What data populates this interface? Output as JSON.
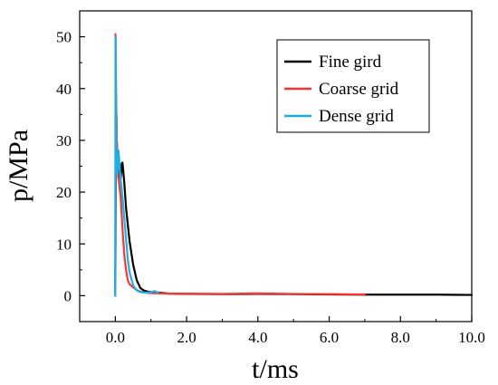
{
  "chart_data": {
    "type": "line",
    "title": "",
    "xlabel": "t/ms",
    "ylabel": "p/MPa",
    "xlim": [
      -1,
      10
    ],
    "ylim": [
      -5,
      55
    ],
    "x_ticks": [
      0,
      2,
      4,
      6,
      8,
      10
    ],
    "x_tick_labels": [
      "0.0",
      "2.0",
      "4.0",
      "6.0",
      "8.0",
      "10.0"
    ],
    "y_ticks": [
      0,
      10,
      20,
      30,
      40,
      50
    ],
    "y_tick_labels": [
      "0",
      "10",
      "20",
      "30",
      "40",
      "50"
    ],
    "grid": false,
    "legend": "top-right",
    "series": [
      {
        "name": "Fine gird",
        "color": "#000000",
        "x": [
          0,
          0.02,
          0.04,
          0.06,
          0.08,
          0.1,
          0.12,
          0.15,
          0.18,
          0.2,
          0.25,
          0.3,
          0.4,
          0.5,
          0.6,
          0.7,
          0.8,
          0.9,
          1.0,
          1.2,
          1.5,
          2.0,
          3.0,
          4.0,
          5.0,
          6.0,
          7.0,
          8.0,
          9.0,
          10.0
        ],
        "y": [
          0,
          38,
          30,
          26,
          25,
          24,
          23,
          22.5,
          25.5,
          25.7,
          22,
          17,
          10.5,
          6,
          3,
          1.5,
          1.0,
          0.8,
          0.7,
          0.6,
          0.4,
          0.35,
          0.3,
          0.35,
          0.3,
          0.25,
          0.2,
          0.2,
          0.2,
          0.15
        ]
      },
      {
        "name": "Coarse grid",
        "color": "#ff3333",
        "x": [
          0,
          0.005,
          0.02,
          0.04,
          0.06,
          0.08,
          0.1,
          0.15,
          0.2,
          0.25,
          0.3,
          0.35,
          0.4,
          0.5,
          0.6,
          0.7,
          0.8,
          1.0,
          1.5,
          2.0,
          3.0,
          4.0,
          5.0,
          6.0,
          7.0
        ],
        "y": [
          0,
          50.5,
          40,
          30,
          25,
          23,
          22,
          19,
          13,
          8,
          5,
          3,
          2.2,
          1.6,
          1.1,
          0.8,
          0.6,
          0.5,
          0.4,
          0.4,
          0.35,
          0.45,
          0.35,
          0.3,
          0.25
        ]
      },
      {
        "name": "Dense grid",
        "color": "#19b2e6",
        "x": [
          0,
          0.01,
          0.02,
          0.03,
          0.05,
          0.07,
          0.09,
          0.12,
          0.15,
          0.2,
          0.25,
          0.3,
          0.35,
          0.4,
          0.5,
          0.6,
          0.7,
          0.8,
          0.9,
          1.0,
          1.1,
          1.2
        ],
        "y": [
          0,
          50,
          35,
          27,
          23.5,
          24.5,
          28,
          25,
          22.5,
          19,
          15,
          11,
          7,
          4.5,
          2,
          1,
          0.7,
          0.6,
          0.6,
          0.7,
          0.9,
          0.6
        ]
      }
    ]
  }
}
